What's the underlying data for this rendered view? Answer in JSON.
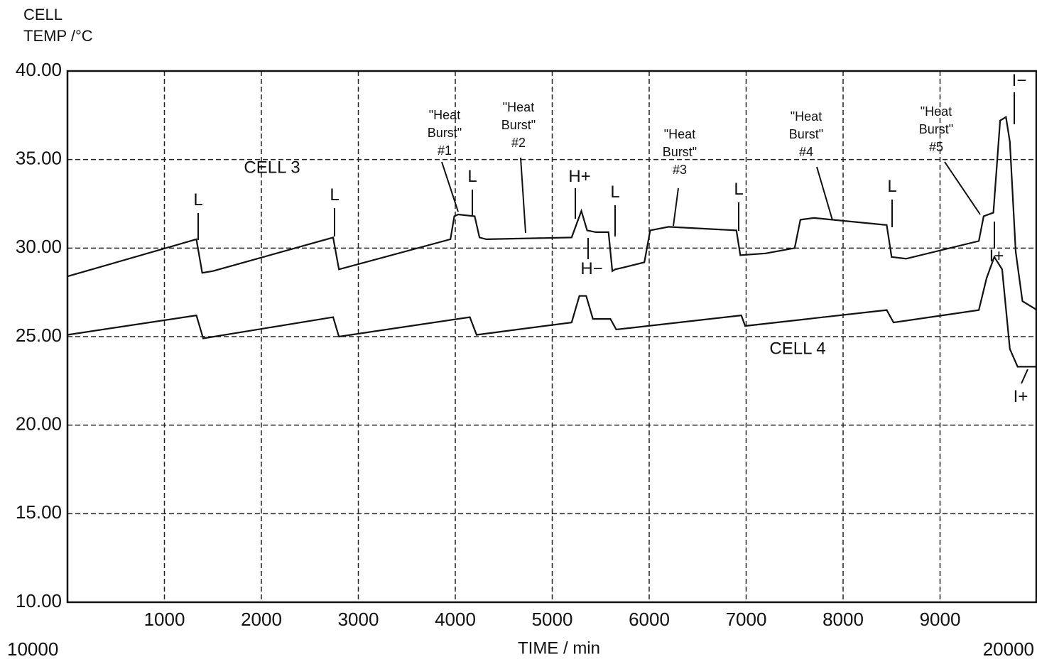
{
  "chart_data": {
    "type": "line",
    "ylabel": [
      "CELL",
      "TEMP /°C"
    ],
    "xlabel": "TIME / min",
    "xlim": [
      10000,
      20000
    ],
    "xticks": [
      {
        "value": 10000,
        "label": "10000"
      },
      {
        "value": 11000,
        "label": "1000"
      },
      {
        "value": 12000,
        "label": "2000"
      },
      {
        "value": 13000,
        "label": "3000"
      },
      {
        "value": 14000,
        "label": "4000"
      },
      {
        "value": 15000,
        "label": "5000"
      },
      {
        "value": 16000,
        "label": "6000"
      },
      {
        "value": 17000,
        "label": "7000"
      },
      {
        "value": 18000,
        "label": "8000"
      },
      {
        "value": 19000,
        "label": "9000"
      },
      {
        "value": 20000,
        "label": "20000"
      }
    ],
    "ylim": [
      10,
      40
    ],
    "yticks": [
      {
        "value": 10,
        "label": "10.00"
      },
      {
        "value": 15,
        "label": "15.00"
      },
      {
        "value": 20,
        "label": "20.00"
      },
      {
        "value": 25,
        "label": "25.00"
      },
      {
        "value": 30,
        "label": "30.00"
      },
      {
        "value": 35,
        "label": "35.00"
      },
      {
        "value": 40,
        "label": "40.00"
      }
    ],
    "grid": true,
    "series": [
      {
        "name": "CELL 3",
        "color": "#111111",
        "x": [
          10000,
          11330,
          11390,
          11500,
          12740,
          12800,
          13950,
          13990,
          14030,
          14200,
          14250,
          14320,
          15200,
          15300,
          15360,
          15450,
          15580,
          15620,
          15650,
          15730,
          15950,
          16010,
          16200,
          16900,
          16940,
          17200,
          17500,
          17560,
          17700,
          18450,
          18500,
          18650,
          19400,
          19450,
          19550,
          19620,
          19680,
          19720,
          19780,
          19850,
          20000
        ],
        "values": [
          28.4,
          30.5,
          28.6,
          28.7,
          30.6,
          28.8,
          30.5,
          31.8,
          31.9,
          31.8,
          30.6,
          30.5,
          30.6,
          32.1,
          31.0,
          30.9,
          30.9,
          28.7,
          28.8,
          28.9,
          29.2,
          31.0,
          31.2,
          31.0,
          29.6,
          29.7,
          30.0,
          31.6,
          31.7,
          31.3,
          29.5,
          29.4,
          30.4,
          31.8,
          32.0,
          37.2,
          37.4,
          36.0,
          29.8,
          27.0,
          26.5
        ]
      },
      {
        "name": "CELL 4",
        "color": "#111111",
        "x": [
          10000,
          11330,
          11400,
          12740,
          12800,
          14150,
          14220,
          15200,
          15280,
          15350,
          15420,
          15600,
          15660,
          16950,
          16990,
          18450,
          18520,
          19400,
          19480,
          19560,
          19640,
          19720,
          19800,
          20000
        ],
        "values": [
          25.1,
          26.2,
          24.9,
          26.1,
          25.0,
          26.1,
          25.1,
          25.8,
          27.3,
          27.3,
          26.0,
          26.0,
          25.4,
          26.2,
          25.6,
          26.5,
          25.8,
          26.5,
          28.3,
          29.5,
          28.8,
          24.3,
          23.3,
          23.3
        ]
      }
    ],
    "annotations": [
      [
        "L"
      ],
      [
        "L"
      ],
      [
        "L"
      ],
      [
        "L"
      ],
      [
        "L"
      ],
      [
        "L"
      ],
      [
        "\"Heat",
        "Burst\"",
        "#1"
      ],
      [
        "\"Heat",
        "Burst\"",
        "#2"
      ],
      [
        "\"Heat",
        "Burst\"",
        "#3"
      ],
      [
        "\"Heat",
        "Burst\"",
        "#4"
      ],
      [
        "\"Heat",
        "Burst\"",
        "#5"
      ],
      [
        "H+"
      ],
      [
        "H−"
      ],
      [
        "I+"
      ],
      [
        "I+"
      ],
      [
        "I−"
      ]
    ]
  }
}
